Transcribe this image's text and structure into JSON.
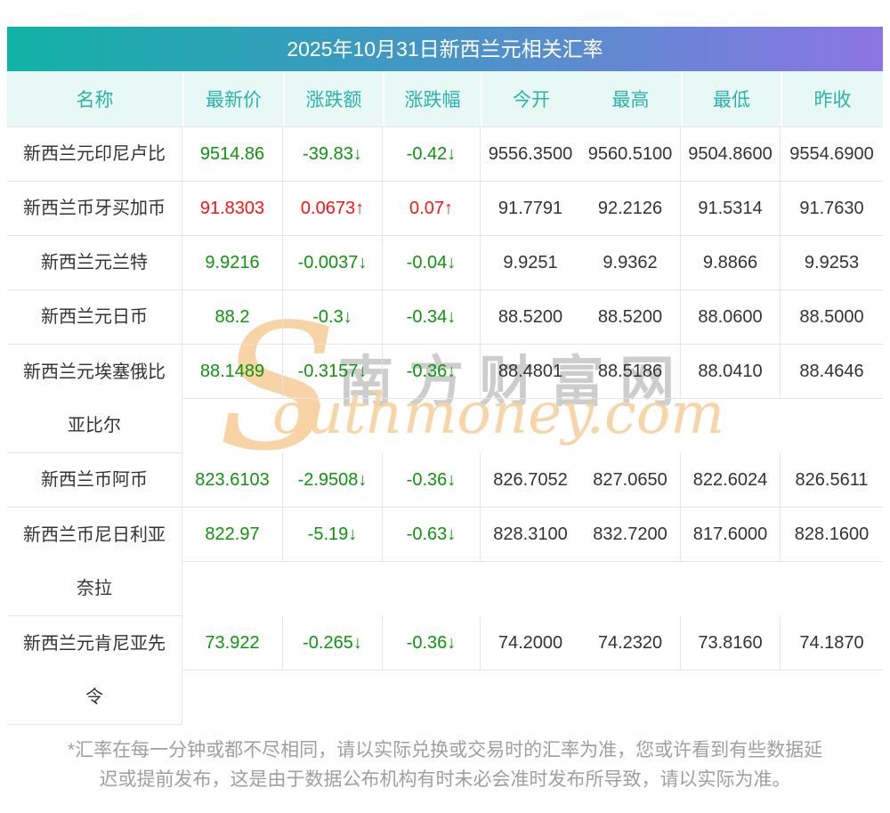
{
  "chart_data": {
    "type": "table",
    "title": "2025年10月31日新西兰元相关汇率",
    "columns": [
      "名称",
      "最新价",
      "涨跌额",
      "涨跌幅",
      "今开",
      "最高",
      "最低",
      "昨收"
    ],
    "rows": [
      {
        "name_lines": [
          "新西兰元印尼卢比"
        ],
        "latest": "9514.86",
        "change": "-39.83",
        "pct": "-0.42",
        "dir": "down",
        "open": "9556.3500",
        "high": "9560.5100",
        "low": "9504.8600",
        "prev_close": "9554.6900"
      },
      {
        "name_lines": [
          "新西兰币牙买加币"
        ],
        "latest": "91.8303",
        "change": "0.0673",
        "pct": "0.07",
        "dir": "up",
        "open": "91.7791",
        "high": "92.2126",
        "low": "91.5314",
        "prev_close": "91.7630"
      },
      {
        "name_lines": [
          "新西兰元兰特"
        ],
        "latest": "9.9216",
        "change": "-0.0037",
        "pct": "-0.04",
        "dir": "down",
        "open": "9.9251",
        "high": "9.9362",
        "low": "9.8866",
        "prev_close": "9.9253"
      },
      {
        "name_lines": [
          "新西兰元日币"
        ],
        "latest": "88.2",
        "change": "-0.3",
        "pct": "-0.34",
        "dir": "down",
        "open": "88.5200",
        "high": "88.5200",
        "low": "88.0600",
        "prev_close": "88.5000"
      },
      {
        "name_lines": [
          "新西兰元埃塞俄比",
          "亚比尔"
        ],
        "latest": "88.1489",
        "change": "-0.3157",
        "pct": "-0.36",
        "dir": "down",
        "open": "88.4801",
        "high": "88.5186",
        "low": "88.0410",
        "prev_close": "88.4646"
      },
      {
        "name_lines": [
          "新西兰币阿币"
        ],
        "latest": "823.6103",
        "change": "-2.9508",
        "pct": "-0.36",
        "dir": "down",
        "open": "826.7052",
        "high": "827.0650",
        "low": "822.6024",
        "prev_close": "826.5611"
      },
      {
        "name_lines": [
          "新西兰币尼日利亚",
          "奈拉"
        ],
        "latest": "822.97",
        "change": "-5.19",
        "pct": "-0.63",
        "dir": "down",
        "open": "828.3100",
        "high": "832.7200",
        "low": "817.6000",
        "prev_close": "828.1600"
      },
      {
        "name_lines": [
          "新西兰元肯尼亚先",
          "令"
        ],
        "latest": "73.922",
        "change": "-0.265",
        "pct": "-0.36",
        "dir": "down",
        "open": "74.2000",
        "high": "74.2320",
        "low": "73.8160",
        "prev_close": "74.1870"
      }
    ],
    "legend": "green = down, red = up",
    "grid": "light-gray cell borders, no border between 今开 and 最高 columns"
  },
  "arrows": {
    "up": "↑",
    "down": "↓"
  },
  "colors": {
    "up": "#fe1313",
    "down": "#0e940e",
    "header_text": "#2ab4a9",
    "header_bg": "#e7f8f5",
    "title_gradient_left": "#12b2a6",
    "title_gradient_mid": "#4496c6",
    "title_gradient_right": "#8c75e3",
    "value_text": "#333333",
    "disclaimer_text": "#9f9f9f"
  },
  "watermark": {
    "initial": "S",
    "rest": "outhmoney.com",
    "chinese": "南方财富网"
  },
  "disclaimer_lines": [
    "*汇率在每一分钟或都不尽相同，请以实际兑换或交易时的汇率为准，您或许看到有些数据延",
    "迟或提前发布，这是由于数据公布机构有时未必会准时发布所导致，请以实际为准。"
  ]
}
